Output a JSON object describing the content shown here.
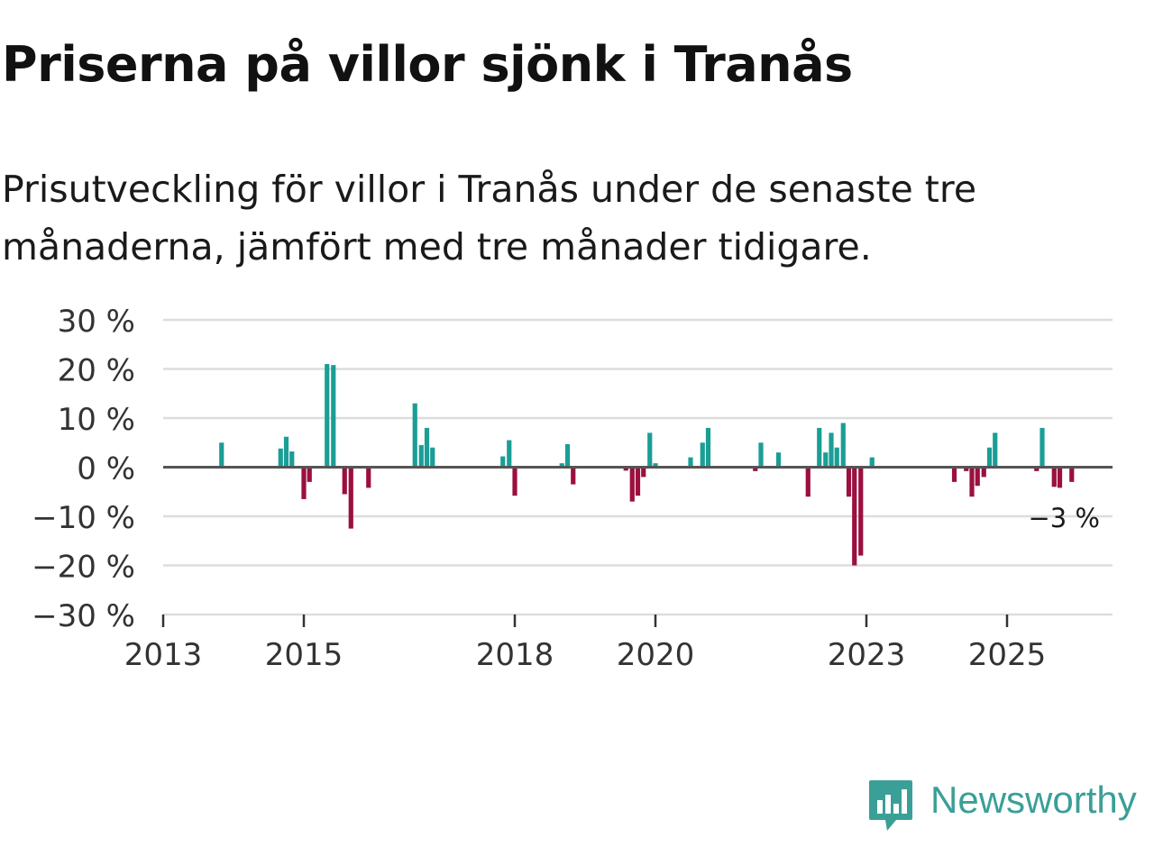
{
  "title": "Priserna på villor sjönk i Tranås",
  "subtitle": "Prisutveckling för villor i Tranås under de senaste tre månaderna, jämfört med tre månader tidigare.",
  "brand": {
    "name": "Newsworthy",
    "icon": "newsworthy-logo-icon",
    "color": "#3a9f97"
  },
  "colors": {
    "positive": "#1a9e96",
    "negative": "#9b1040",
    "grid": "#dddddd",
    "zero": "#555555"
  },
  "chart_data": {
    "type": "bar",
    "ylim": [
      -30,
      30
    ],
    "yticks": [
      30,
      20,
      10,
      0,
      -10,
      -20,
      -30
    ],
    "ytick_labels": [
      "30 %",
      "20 %",
      "10 %",
      "0 %",
      "−10 %",
      "−20 %",
      "−30 %"
    ],
    "xlim": [
      2013.0,
      2026.5
    ],
    "xticks": [
      2013,
      2015,
      2018,
      2020,
      2023,
      2025
    ],
    "xtick_labels": [
      "2013",
      "2015",
      "2018",
      "2020",
      "2023",
      "2025"
    ],
    "last_value_label": "−3 %",
    "series": [
      {
        "name": "Prisutveckling",
        "points": [
          {
            "x": 2013.83,
            "y": 5
          },
          {
            "x": 2014.67,
            "y": 3.8
          },
          {
            "x": 2014.75,
            "y": 6.2
          },
          {
            "x": 2014.83,
            "y": 3.2
          },
          {
            "x": 2015.0,
            "y": -6.5
          },
          {
            "x": 2015.08,
            "y": -3
          },
          {
            "x": 2015.33,
            "y": 21
          },
          {
            "x": 2015.42,
            "y": 20.8
          },
          {
            "x": 2015.58,
            "y": -5.5
          },
          {
            "x": 2015.67,
            "y": -12.5
          },
          {
            "x": 2015.92,
            "y": -4.2
          },
          {
            "x": 2016.58,
            "y": 13
          },
          {
            "x": 2016.67,
            "y": 4.5
          },
          {
            "x": 2016.75,
            "y": 8
          },
          {
            "x": 2016.83,
            "y": 4
          },
          {
            "x": 2017.83,
            "y": 2.2
          },
          {
            "x": 2017.92,
            "y": 5.5
          },
          {
            "x": 2018.0,
            "y": -5.8
          },
          {
            "x": 2018.67,
            "y": 0.8
          },
          {
            "x": 2018.75,
            "y": 4.7
          },
          {
            "x": 2018.83,
            "y": -3.5
          },
          {
            "x": 2019.58,
            "y": -0.7
          },
          {
            "x": 2019.67,
            "y": -7
          },
          {
            "x": 2019.75,
            "y": -5.8
          },
          {
            "x": 2019.83,
            "y": -2
          },
          {
            "x": 2019.92,
            "y": 7
          },
          {
            "x": 2020.0,
            "y": 0.8
          },
          {
            "x": 2020.5,
            "y": 2
          },
          {
            "x": 2020.67,
            "y": 5
          },
          {
            "x": 2020.75,
            "y": 8
          },
          {
            "x": 2021.42,
            "y": -0.8
          },
          {
            "x": 2021.5,
            "y": 5
          },
          {
            "x": 2021.75,
            "y": 3
          },
          {
            "x": 2022.17,
            "y": -6
          },
          {
            "x": 2022.33,
            "y": 8
          },
          {
            "x": 2022.42,
            "y": 3
          },
          {
            "x": 2022.5,
            "y": 7
          },
          {
            "x": 2022.58,
            "y": 4
          },
          {
            "x": 2022.67,
            "y": 9
          },
          {
            "x": 2022.75,
            "y": -6
          },
          {
            "x": 2022.83,
            "y": -20
          },
          {
            "x": 2022.92,
            "y": -18
          },
          {
            "x": 2023.08,
            "y": 2
          },
          {
            "x": 2024.25,
            "y": -3
          },
          {
            "x": 2024.42,
            "y": -0.8
          },
          {
            "x": 2024.5,
            "y": -6
          },
          {
            "x": 2024.58,
            "y": -3.8
          },
          {
            "x": 2024.67,
            "y": -2
          },
          {
            "x": 2024.75,
            "y": 4
          },
          {
            "x": 2024.83,
            "y": 7
          },
          {
            "x": 2025.42,
            "y": -0.8
          },
          {
            "x": 2025.5,
            "y": 8
          },
          {
            "x": 2025.67,
            "y": -4
          },
          {
            "x": 2025.75,
            "y": -4.2
          },
          {
            "x": 2025.92,
            "y": -3
          }
        ]
      }
    ]
  }
}
